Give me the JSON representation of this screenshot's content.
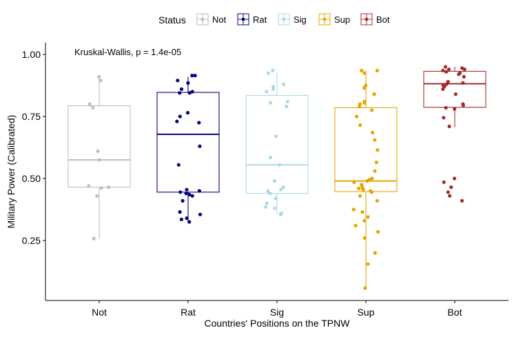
{
  "chart_data": {
    "type": "box",
    "title": "",
    "xlabel": "Countries' Positions on the TPNW",
    "ylabel": "Military Power (Calibrated)",
    "ylim": [
      0.03,
      1.04
    ],
    "yticks": [
      0.25,
      0.5,
      0.75,
      1.0
    ],
    "ytick_labels": [
      "0.25",
      "0.50",
      "0.75",
      "1.00"
    ],
    "categories": [
      "Not",
      "Rat",
      "Sig",
      "Sup",
      "Bot"
    ],
    "legend": {
      "title": "Status",
      "position": "top",
      "entries": [
        "Not",
        "Rat",
        "Sig",
        "Sup",
        "Bot"
      ]
    },
    "annotation": "Kruskal-Wallis, p = 1.4e-05",
    "grid": false,
    "series": [
      {
        "name": "Not",
        "color": "#BEBEBE",
        "box": {
          "q1": 0.465,
          "median": 0.575,
          "q3": 0.793,
          "whisker_low": 0.258,
          "whisker_high": 0.91
        },
        "points": [
          0.91,
          0.895,
          0.8,
          0.785,
          0.61,
          0.575,
          0.47,
          0.465,
          0.462,
          0.43,
          0.258
        ]
      },
      {
        "name": "Rat",
        "color": "#00007F",
        "box": {
          "q1": 0.445,
          "median": 0.678,
          "q3": 0.847,
          "whisker_low": 0.325,
          "whisker_high": 0.91
        },
        "points": [
          0.915,
          0.915,
          0.895,
          0.885,
          0.86,
          0.85,
          0.845,
          0.845,
          0.765,
          0.75,
          0.73,
          0.725,
          0.63,
          0.555,
          0.455,
          0.45,
          0.445,
          0.44,
          0.435,
          0.43,
          0.41,
          0.365,
          0.355,
          0.34,
          0.335,
          0.325
        ]
      },
      {
        "name": "Sig",
        "color": "#ADD8E6",
        "box": {
          "q1": 0.44,
          "median": 0.555,
          "q3": 0.835,
          "whisker_low": 0.355,
          "whisker_high": 0.93
        },
        "points": [
          0.935,
          0.925,
          0.88,
          0.87,
          0.86,
          0.85,
          0.81,
          0.805,
          0.79,
          0.67,
          0.585,
          0.555,
          0.49,
          0.465,
          0.455,
          0.45,
          0.44,
          0.42,
          0.4,
          0.385,
          0.38,
          0.36,
          0.355
        ]
      },
      {
        "name": "Sup",
        "color": "#E8A400",
        "box": {
          "q1": 0.447,
          "median": 0.49,
          "q3": 0.785,
          "whisker_low": 0.058,
          "whisker_high": 0.935
        },
        "points": [
          0.935,
          0.935,
          0.925,
          0.875,
          0.865,
          0.84,
          0.81,
          0.805,
          0.8,
          0.79,
          0.775,
          0.75,
          0.715,
          0.685,
          0.655,
          0.615,
          0.565,
          0.53,
          0.5,
          0.495,
          0.49,
          0.485,
          0.475,
          0.465,
          0.46,
          0.455,
          0.45,
          0.445,
          0.43,
          0.41,
          0.375,
          0.365,
          0.345,
          0.33,
          0.31,
          0.285,
          0.26,
          0.2,
          0.155,
          0.058
        ]
      },
      {
        "name": "Bot",
        "color": "#A52A2A",
        "box": {
          "q1": 0.787,
          "median": 0.882,
          "q3": 0.932,
          "whisker_low": 0.707,
          "whisker_high": 0.95
        },
        "points": [
          0.95,
          0.945,
          0.94,
          0.94,
          0.935,
          0.93,
          0.925,
          0.925,
          0.92,
          0.91,
          0.89,
          0.885,
          0.88,
          0.875,
          0.87,
          0.86,
          0.84,
          0.8,
          0.795,
          0.785,
          0.78,
          0.745,
          0.71,
          0.5,
          0.485,
          0.465,
          0.445,
          0.43,
          0.41
        ]
      }
    ]
  }
}
